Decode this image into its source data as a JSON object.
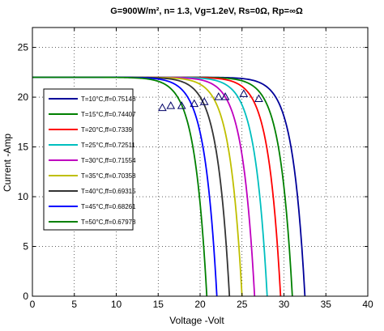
{
  "chart_data": {
    "type": "line",
    "title": "G=900W/m², n= 1.3, Vg=1.2eV, Rs=0Ω, Rp=∞Ω",
    "xlabel": "Voltage -Volt",
    "ylabel": "Current -Amp",
    "xlim": [
      0,
      40
    ],
    "ylim": [
      0,
      27
    ],
    "xticks": [
      "0",
      "5",
      "10",
      "15",
      "20",
      "25",
      "30",
      "35",
      "40"
    ],
    "yticks": [
      "0",
      "5",
      "10",
      "15",
      "20",
      "25"
    ],
    "grid": true,
    "legend_position": "left",
    "isc": 22,
    "mpp_marker": "triangle",
    "series": [
      {
        "name": "T=10°C,ff=0.75148",
        "color": "#000099",
        "voc": 32.5,
        "mpp": [
          27.0,
          19.8
        ]
      },
      {
        "name": "T=15°C,ff=0.74407",
        "color": "#008000",
        "voc": 31.0,
        "mpp": [
          25.2,
          20.3
        ]
      },
      {
        "name": "T=20°C,ff=0.7339",
        "color": "#ff0000",
        "voc": 29.6,
        "mpp": [
          23.0,
          20.0
        ]
      },
      {
        "name": "T=25°C,ff=0.72511",
        "color": "#00bfbf",
        "voc": 28.0,
        "mpp": [
          22.2,
          20.0
        ]
      },
      {
        "name": "T=30°C,ff=0.71554",
        "color": "#bf00bf",
        "voc": 26.5,
        "mpp": [
          20.5,
          19.5
        ]
      },
      {
        "name": "T=35°C,ff=0.70358",
        "color": "#bfbf00",
        "voc": 25.0,
        "mpp": [
          19.3,
          19.3
        ]
      },
      {
        "name": "T=40°C,ff=0.69315",
        "color": "#333333",
        "voc": 23.5,
        "mpp": [
          17.8,
          19.1
        ]
      },
      {
        "name": "T=45°C,ff=0.68261",
        "color": "#0000ff",
        "voc": 22.0,
        "mpp": [
          16.5,
          19.1
        ]
      },
      {
        "name": "T=50°C,ff=0.67978",
        "color": "#008000",
        "voc": 20.8,
        "mpp": [
          15.5,
          18.9
        ]
      }
    ]
  }
}
